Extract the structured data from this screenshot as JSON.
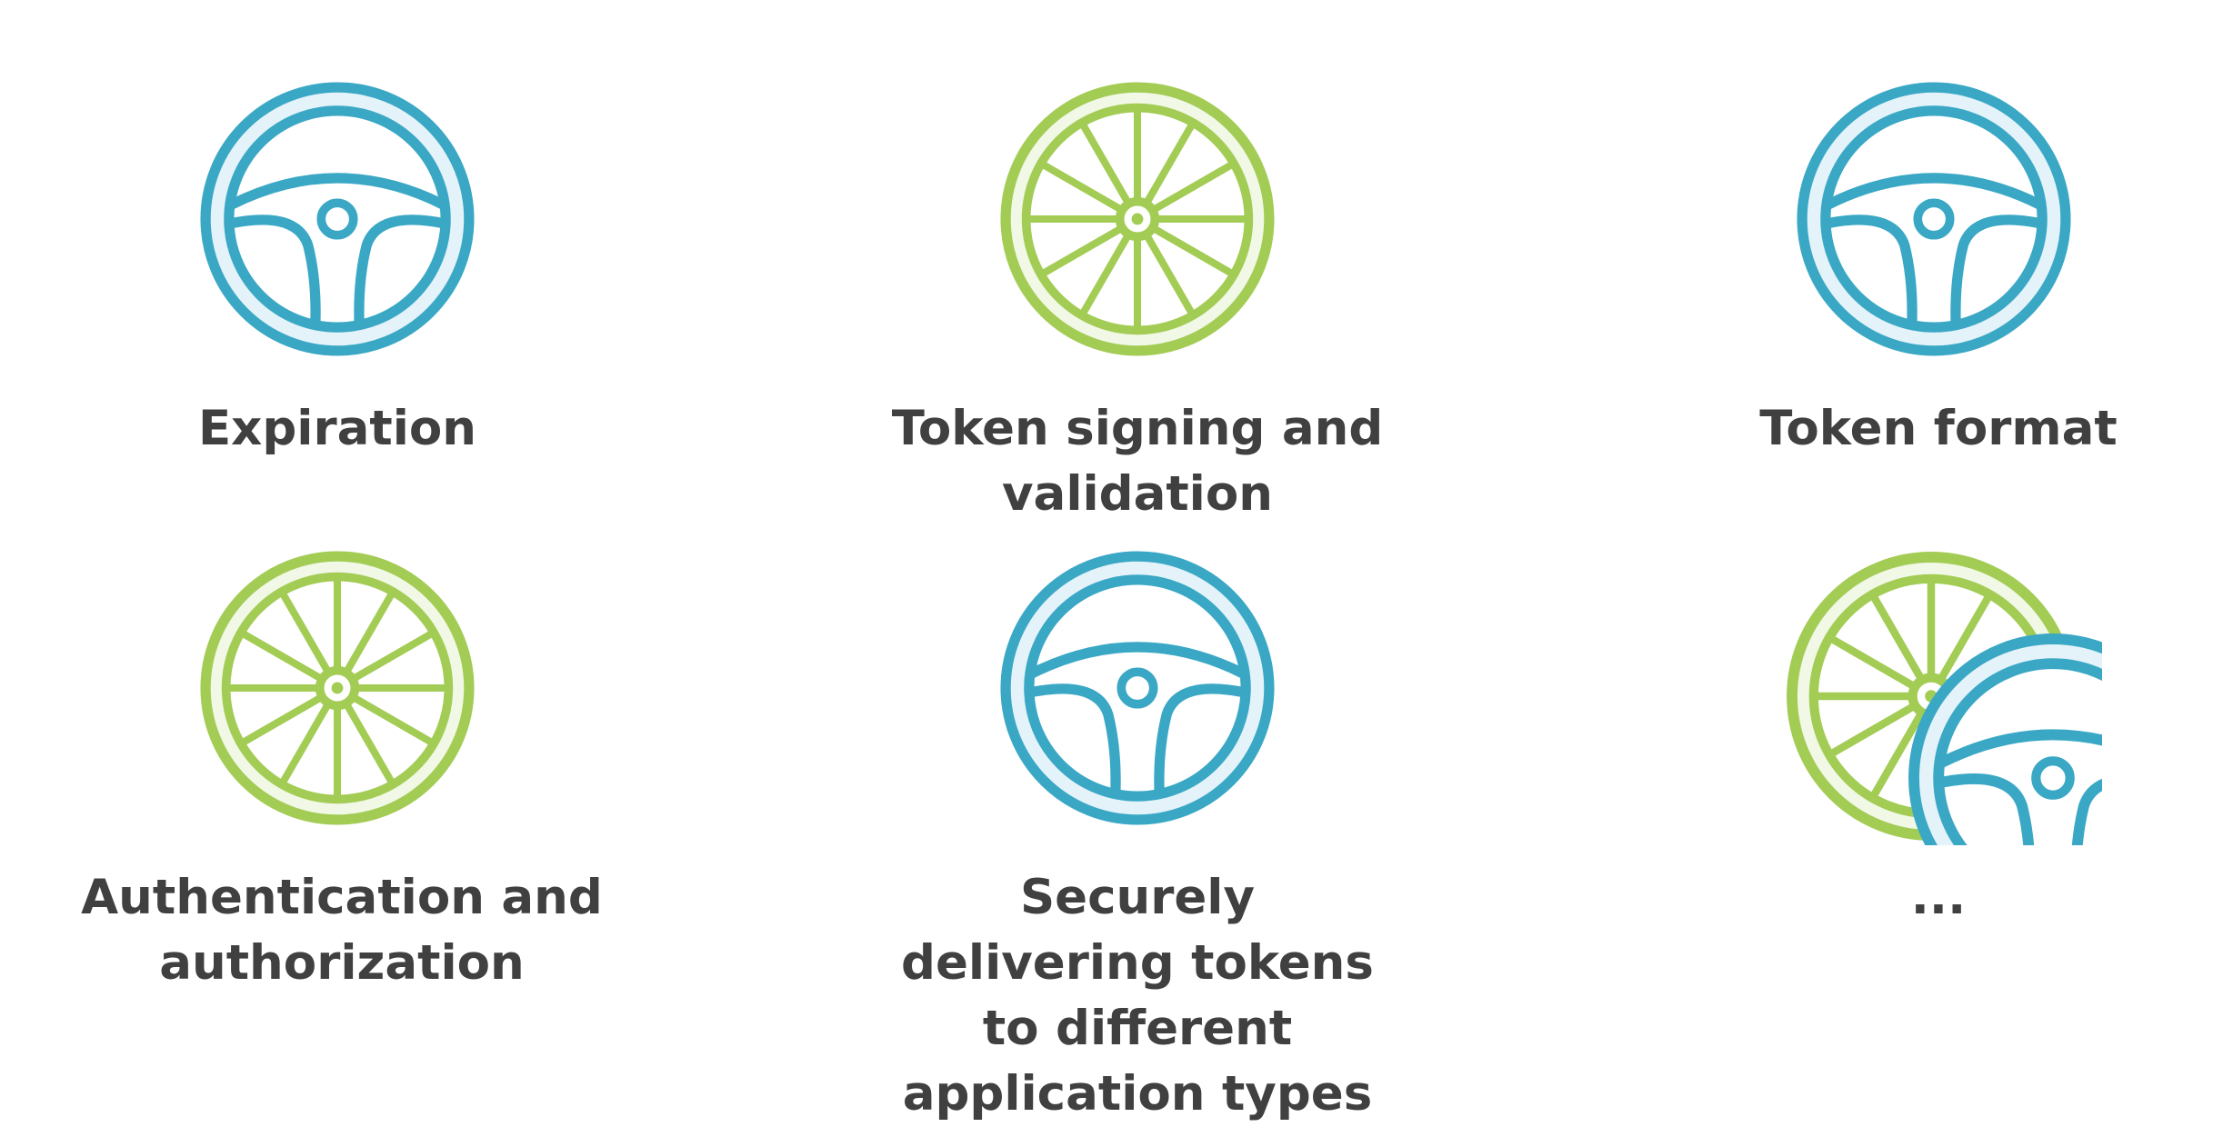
{
  "colors": {
    "blue": "#3aa8c5",
    "blue_fill": "#e4f3f9",
    "green": "#a3cc55",
    "green_fill": "#f1f8e6",
    "text": "#404040",
    "background": "#ffffff"
  },
  "items": [
    {
      "label": "Expiration",
      "icon": "steering-wheel-icon"
    },
    {
      "label": "Token signing and validation",
      "icon": "spoked-wheel-icon"
    },
    {
      "label": "Token format",
      "icon": "steering-wheel-icon"
    },
    {
      "label": "Authentication and authorization",
      "icon": "spoked-wheel-icon"
    },
    {
      "label": "Securely delivering tokens to different application types",
      "icon": "steering-wheel-icon"
    },
    {
      "label": "...",
      "icon": "wheels-combo-icon"
    }
  ]
}
